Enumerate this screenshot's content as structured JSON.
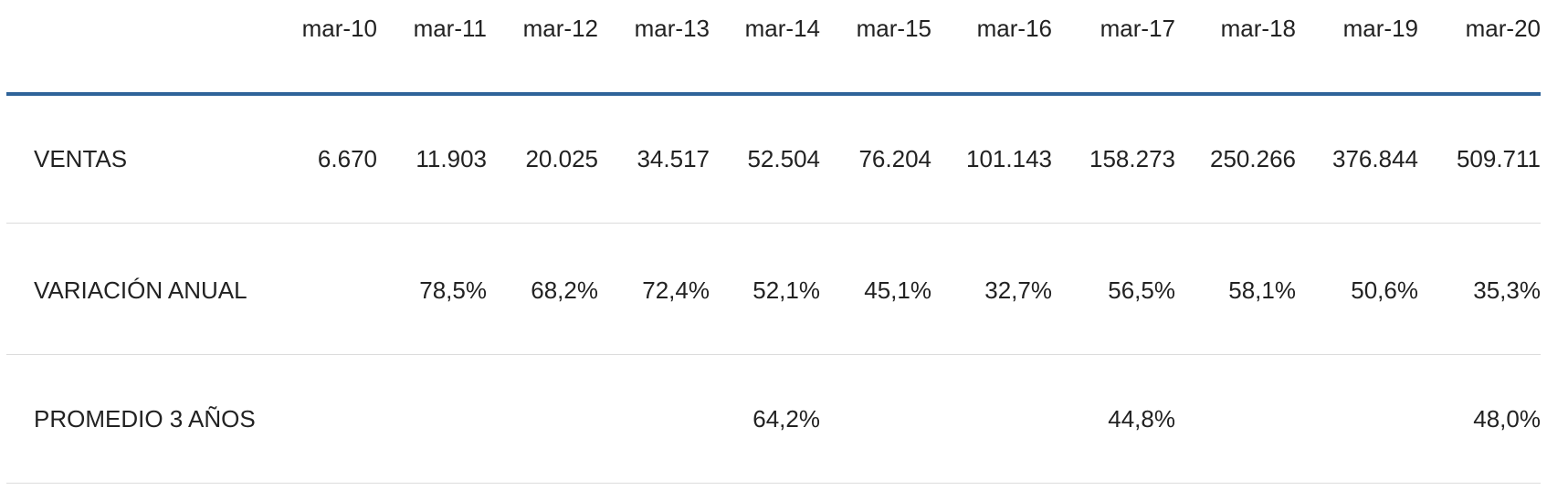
{
  "table": {
    "columns": [
      "mar-10",
      "mar-11",
      "mar-12",
      "mar-13",
      "mar-14",
      "mar-15",
      "mar-16",
      "mar-17",
      "mar-18",
      "mar-19",
      "mar-20"
    ],
    "rows": [
      {
        "label": "VENTAS",
        "cells": [
          "6.670",
          "11.903",
          "20.025",
          "34.517",
          "52.504",
          "76.204",
          "101.143",
          "158.273",
          "250.266",
          "376.844",
          "509.711"
        ]
      },
      {
        "label": "VARIACIÓN ANUAL",
        "cells": [
          null,
          "78,5%",
          "68,2%",
          "72,4%",
          "52,1%",
          "45,1%",
          "32,7%",
          "56,5%",
          "58,1%",
          "50,6%",
          "35,3%"
        ]
      },
      {
        "label": "PROMEDIO 3 AÑOS",
        "cells": [
          null,
          null,
          null,
          null,
          "64,2%",
          null,
          null,
          "44,8%",
          null,
          null,
          "48,0%"
        ]
      }
    ]
  }
}
